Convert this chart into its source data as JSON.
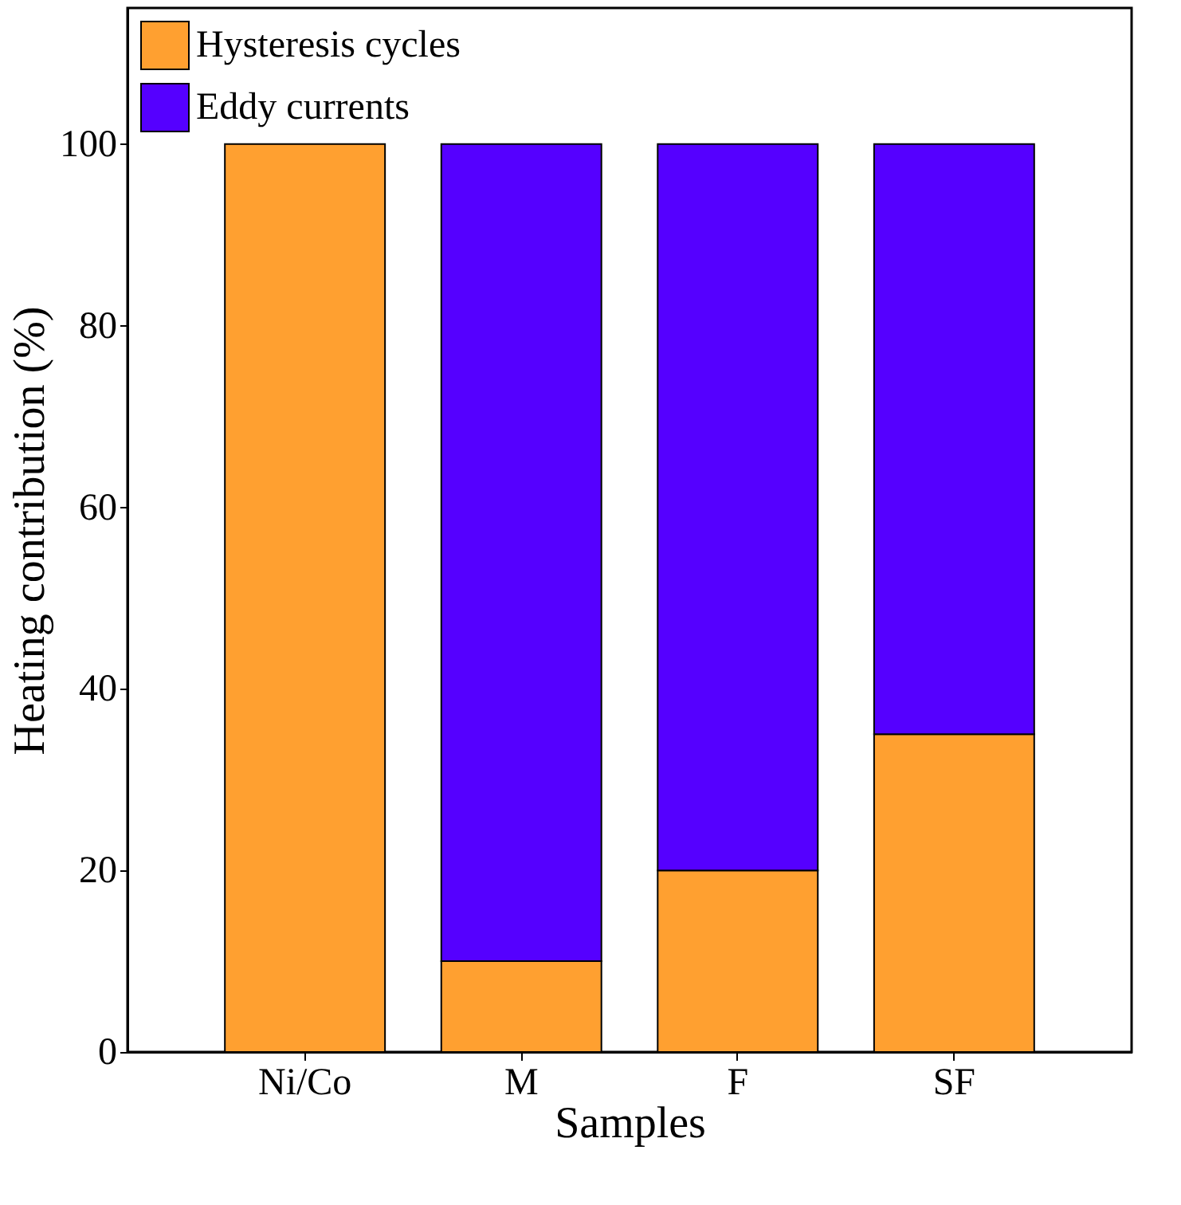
{
  "chart_data": {
    "type": "bar",
    "stacked": true,
    "xlabel": "Samples",
    "ylabel": "Heating contribution (%)",
    "categories": [
      "Ni/Co",
      "M",
      "F",
      "SF"
    ],
    "series": [
      {
        "name": "Hysteresis cycles",
        "color": "#ffa030",
        "values": [
          100,
          10,
          20,
          35
        ]
      },
      {
        "name": "Eddy currents",
        "color": "#5500ff",
        "values": [
          null,
          90,
          80,
          65
        ]
      }
    ],
    "ylim": [
      0,
      115
    ],
    "yticks": [
      0,
      20,
      40,
      60,
      80,
      100
    ],
    "grid": false,
    "legend": "top left"
  }
}
